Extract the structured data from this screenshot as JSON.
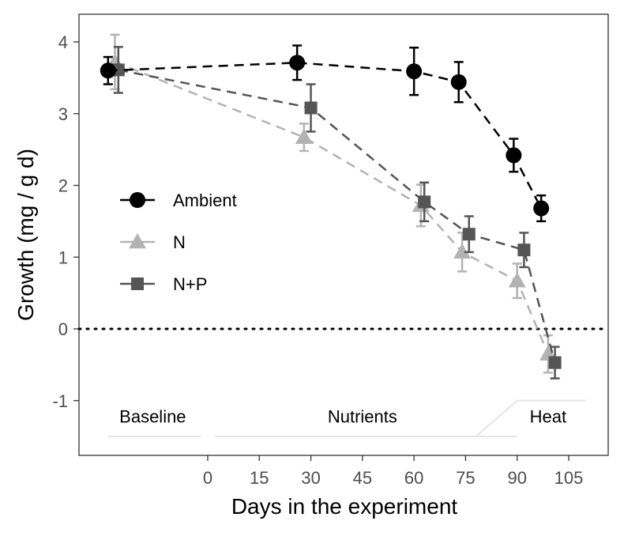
{
  "chart_data": {
    "type": "line",
    "xlabel": "Days in the experiment",
    "ylabel": "Growth (mg / g d)",
    "xlim": [
      -30,
      110
    ],
    "ylim": [
      -1.75,
      4.4
    ],
    "x_ticks": [
      0,
      15,
      30,
      45,
      60,
      75,
      90,
      105
    ],
    "x_tick_labels": [
      "0",
      "15",
      "30",
      "45",
      "60",
      "75",
      "90",
      "105"
    ],
    "y_ticks": [
      -1,
      0,
      1,
      2,
      3,
      4
    ],
    "y_tick_labels": [
      "-1",
      "0",
      "1",
      "2",
      "3",
      "4"
    ],
    "grid": false,
    "reference_line": {
      "y": 0,
      "style": "dotted"
    },
    "legend_position": "middle-left",
    "series": [
      {
        "name": "Ambient",
        "color": "#000000",
        "marker": "circle",
        "x": [
          -29,
          26,
          60,
          73,
          89,
          97
        ],
        "y": [
          3.6,
          3.71,
          3.59,
          3.44,
          2.42,
          1.68
        ],
        "err": [
          0.19,
          0.24,
          0.33,
          0.28,
          0.23,
          0.18
        ]
      },
      {
        "name": "N",
        "color": "#b3b3b3",
        "marker": "triangle",
        "x": [
          -27,
          28,
          62,
          74,
          90,
          99
        ],
        "y": [
          3.72,
          2.67,
          1.72,
          1.07,
          0.67,
          -0.35
        ],
        "err": [
          0.38,
          0.19,
          0.29,
          0.27,
          0.24,
          0.26
        ]
      },
      {
        "name": "N+P",
        "color": "#555555",
        "marker": "square",
        "x": [
          -26,
          30,
          63,
          76,
          92,
          101
        ],
        "y": [
          3.61,
          3.08,
          1.77,
          1.32,
          1.1,
          -0.47
        ],
        "err": [
          0.32,
          0.33,
          0.27,
          0.25,
          0.24,
          0.22
        ]
      }
    ],
    "phases": [
      {
        "label": "Baseline",
        "x_label": -16,
        "x_start": -29,
        "x_end": -2
      },
      {
        "label": "Nutrients",
        "x_label": 45,
        "x_start": 2,
        "x_end": 90
      },
      {
        "label": "Heat",
        "x_label": 99,
        "x_start": 78,
        "x_end": 110
      }
    ]
  }
}
